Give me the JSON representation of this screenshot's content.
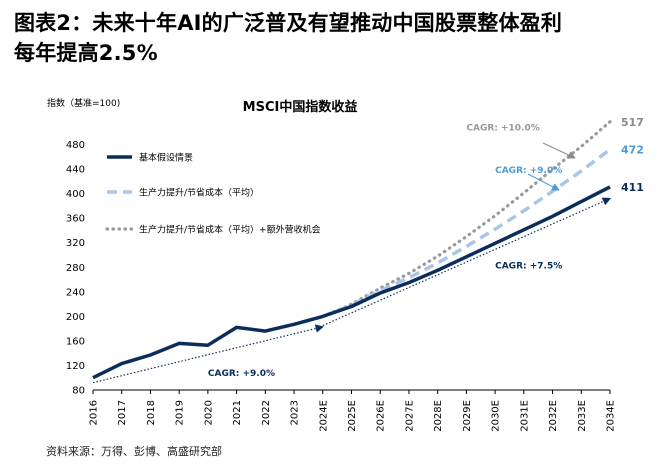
{
  "figure": {
    "title_line1": "图表2：未来十年AI的广泛普及有望推动中国股票整体盈利",
    "title_line2": "每年提高2.5%",
    "source": "资料来源：万得、彭博、高盛研究部"
  },
  "chart_data": {
    "type": "line",
    "title": "MSCI中国指数收益",
    "ylabel": "指数（基准=100)",
    "ylim": [
      80,
      520
    ],
    "yticks": [
      80,
      120,
      160,
      200,
      240,
      280,
      320,
      360,
      400,
      440,
      480
    ],
    "categories": [
      "2016",
      "2017",
      "2018",
      "2019",
      "2020",
      "2021",
      "2022",
      "2023",
      "2024E",
      "2025E",
      "2026E",
      "2027E",
      "2028E",
      "2029E",
      "2030E",
      "2031E",
      "2032E",
      "2033E",
      "2034E"
    ],
    "grid": false,
    "legend_position": "top-left",
    "colors": {
      "base": "#0b2d5b",
      "productivity": "#a8c6e8",
      "extra": "#9a9a9a",
      "trend": "#0b2d5b",
      "label_light": "#4e9bd6"
    },
    "series": [
      {
        "name": "基本假设情景",
        "style": "solid",
        "color": "#0b2d5b",
        "values": [
          100,
          123,
          137,
          156,
          153,
          182,
          176,
          187,
          200,
          216,
          238,
          255,
          275,
          297,
          319,
          341,
          363,
          387,
          411
        ],
        "end_label": "411"
      },
      {
        "name": "生产力提升/节省成本（平均）",
        "style": "dashed",
        "color": "#a8c6e8",
        "values": [
          null,
          null,
          null,
          null,
          null,
          null,
          null,
          null,
          200,
          218,
          242,
          263,
          287,
          314,
          342,
          372,
          404,
          437,
          472
        ],
        "end_label": "472"
      },
      {
        "name": "生产力提升/节省成本（平均）+额外营收机会",
        "style": "dotted",
        "color": "#9a9a9a",
        "values": [
          null,
          null,
          null,
          null,
          null,
          null,
          null,
          null,
          200,
          220,
          246,
          270,
          298,
          330,
          364,
          401,
          440,
          477,
          517
        ],
        "end_label": "517"
      }
    ],
    "trend_lines": [
      {
        "from": [
          "2016",
          92
        ],
        "to": [
          "2024E",
          183
        ]
      },
      {
        "from": [
          "2024E",
          185
        ],
        "to": [
          "2034E",
          392
        ]
      }
    ],
    "annotations": [
      {
        "text": "CAGR: +9.0%",
        "x": "2020",
        "y": 103,
        "color": "#0b2d5b"
      },
      {
        "text": "CAGR: +7.5%",
        "x": "2030E",
        "y": 278,
        "color": "#0b2d5b"
      },
      {
        "text": "CAGR: +9.0%",
        "x": "2030E",
        "y": 434,
        "color": "#4e9bd6"
      },
      {
        "text": "CAGR: +10.0%",
        "x": "2029E",
        "y": 503,
        "color": "#9a9a9a"
      }
    ]
  }
}
